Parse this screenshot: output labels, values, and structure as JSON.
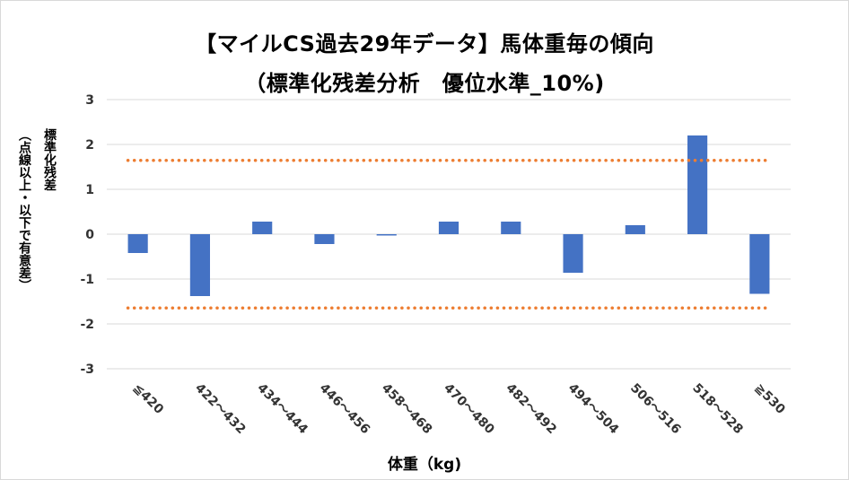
{
  "chart_data": {
    "type": "bar",
    "title": "【マイルCS過去29年データ】馬体重毎の傾向",
    "subtitle": "（標準化残差分析　優位水準_10%)",
    "xlabel": "体重（kg)",
    "ylabel": [
      "標準化残差",
      "（点線以上・以下で有意差）"
    ],
    "categories": [
      "≦420",
      "422～432",
      "434～444",
      "446～456",
      "458～468",
      "470～480",
      "482～492",
      "494～504",
      "506～516",
      "518～528",
      "≧530"
    ],
    "values": [
      -0.42,
      -1.38,
      0.28,
      -0.22,
      -0.03,
      0.28,
      0.28,
      -0.86,
      0.2,
      2.2,
      -1.33
    ],
    "ylim": [
      -3,
      3
    ],
    "yticks": [
      "3",
      "2",
      "1",
      "0",
      "-1",
      "-2",
      "-3"
    ],
    "reference_lines": [
      1.645,
      -1.645
    ],
    "grid": true,
    "colors": {
      "bar": "#4472c4",
      "reference_line": "#ed7d31",
      "grid": "#d9d9d9"
    }
  }
}
